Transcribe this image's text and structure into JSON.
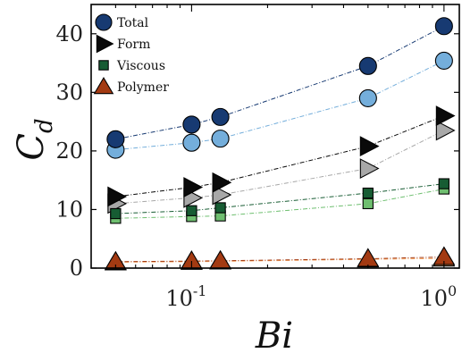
{
  "chart_data": {
    "type": "scatter",
    "xscale": "log",
    "xlim": [
      0.04,
      1.15
    ],
    "ylim": [
      0,
      45
    ],
    "grid": false,
    "legend_position": "top-left",
    "xlabel": "Bi",
    "ylabel": "C_d",
    "ylabel_main": "C",
    "ylabel_sub": "d",
    "yticks": [
      0,
      10,
      20,
      30,
      40
    ],
    "ytick_labels": [
      "0",
      "10",
      "20",
      "30",
      "40"
    ],
    "xticks": [
      0.1,
      1
    ],
    "xtick_labels": [
      {
        "base": "10",
        "exp": "-1"
      },
      {
        "base": "10",
        "exp": "0"
      }
    ],
    "x": [
      0.05,
      0.1,
      0.13,
      0.5,
      1.0
    ],
    "series": [
      {
        "name": "Total",
        "marker": "circle",
        "dark_color": "#173a72",
        "light_color": "#74aedb",
        "values": [
          22.0,
          24.5,
          25.8,
          34.5,
          41.3
        ],
        "values_light": [
          20.2,
          21.4,
          22.1,
          29.0,
          35.4
        ]
      },
      {
        "name": "Form",
        "marker": "triangle-right",
        "dark_color": "#0a0a0a",
        "light_color": "#a8a8a8",
        "values": [
          12.2,
          13.8,
          14.6,
          20.8,
          26.0
        ],
        "values_light": [
          11.0,
          12.0,
          12.5,
          17.0,
          23.5
        ]
      },
      {
        "name": "Viscous",
        "marker": "square",
        "dark_color": "#175c33",
        "light_color": "#6fbf70",
        "values": [
          9.3,
          9.8,
          10.3,
          12.8,
          14.4
        ],
        "values_light": [
          8.5,
          8.8,
          8.9,
          11.0,
          13.5
        ]
      },
      {
        "name": "Polymer",
        "marker": "triangle-up",
        "dark_color": "#a33a12",
        "light_color": "#f4a15d",
        "values": [
          1.1,
          1.2,
          1.25,
          1.6,
          1.9
        ],
        "values_light": [
          1.0,
          1.1,
          1.15,
          1.5,
          1.65
        ]
      }
    ]
  }
}
